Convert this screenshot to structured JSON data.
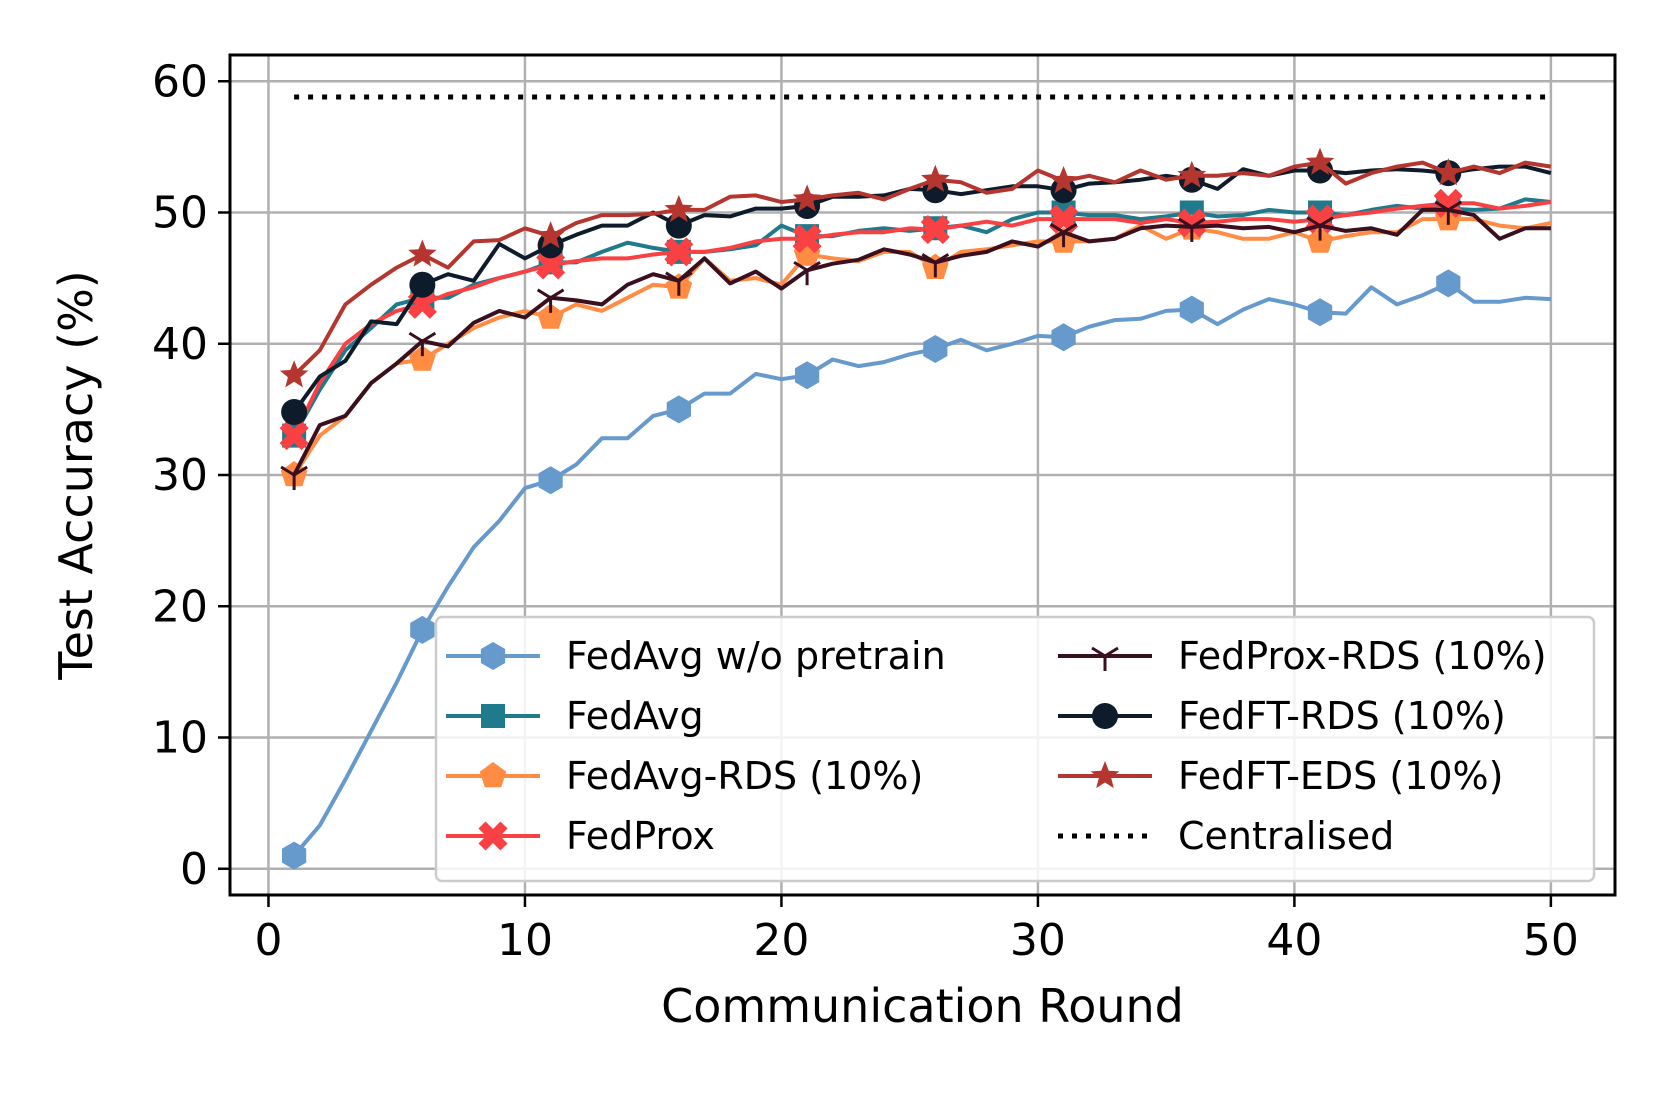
{
  "chart_data": {
    "type": "line",
    "title": "",
    "xlabel": "Communication Round",
    "ylabel": "Test Accuracy (%)",
    "xlim": [
      -1.5,
      52.5
    ],
    "ylim": [
      -2,
      62
    ],
    "xticks": [
      0,
      10,
      20,
      30,
      40,
      50
    ],
    "yticks": [
      0,
      10,
      20,
      30,
      40,
      50,
      60
    ],
    "xtick_labels": [
      "0",
      "10",
      "20",
      "30",
      "40",
      "50"
    ],
    "ytick_labels": [
      "0",
      "10",
      "20",
      "30",
      "40",
      "50",
      "60"
    ],
    "grid": true,
    "legend_position": "lower-right",
    "legend_columns": 2,
    "x": [
      1,
      2,
      3,
      4,
      5,
      6,
      7,
      8,
      9,
      10,
      11,
      12,
      13,
      14,
      15,
      16,
      17,
      18,
      19,
      20,
      21,
      22,
      23,
      24,
      25,
      26,
      27,
      28,
      29,
      30,
      31,
      32,
      33,
      34,
      35,
      36,
      37,
      38,
      39,
      40,
      41,
      42,
      43,
      44,
      45,
      46,
      47,
      48,
      49,
      50
    ],
    "marker_every": 5,
    "series": [
      {
        "name": "FedAvg w/o pretrain",
        "color": "#6699cc",
        "marker": "hexagon",
        "linestyle": "solid",
        "values": [
          1.0,
          3.3,
          6.8,
          10.5,
          14.2,
          18.2,
          21.5,
          24.5,
          26.5,
          29.0,
          29.6,
          30.8,
          32.8,
          32.8,
          34.5,
          35.0,
          36.2,
          36.2,
          37.7,
          37.3,
          37.6,
          38.8,
          38.3,
          38.6,
          39.2,
          39.6,
          40.3,
          39.5,
          40.0,
          40.6,
          40.5,
          41.3,
          41.8,
          41.9,
          42.5,
          42.6,
          41.5,
          42.6,
          43.4,
          43.0,
          42.4,
          42.3,
          44.3,
          43.0,
          43.7,
          44.6,
          43.2,
          43.2,
          43.5,
          43.4
        ]
      },
      {
        "name": "FedAvg",
        "color": "#1f7a8c",
        "marker": "square",
        "linestyle": "solid",
        "values": [
          33.0,
          36.5,
          39.5,
          41.2,
          43.0,
          43.5,
          43.5,
          44.5,
          45.0,
          45.5,
          46.2,
          46.2,
          47.0,
          47.7,
          47.3,
          47.0,
          47.0,
          47.2,
          47.5,
          49.0,
          48.2,
          48.2,
          48.6,
          48.8,
          48.6,
          48.8,
          49.0,
          48.5,
          49.5,
          50.0,
          50.0,
          49.8,
          49.8,
          49.5,
          49.7,
          50.0,
          49.7,
          49.8,
          50.2,
          50.0,
          50.0,
          49.8,
          50.2,
          50.5,
          50.3,
          50.3,
          50.2,
          50.3,
          51.0,
          50.8
        ]
      },
      {
        "name": "FedAvg-RDS (10%)",
        "color": "#ff8c42",
        "marker": "pentagon",
        "linestyle": "solid",
        "values": [
          30.0,
          33.0,
          34.5,
          37.0,
          38.5,
          38.8,
          40.0,
          41.2,
          42.0,
          42.5,
          42.0,
          43.0,
          42.5,
          43.5,
          44.5,
          44.3,
          46.5,
          44.8,
          45.0,
          44.5,
          46.8,
          46.5,
          46.3,
          47.0,
          47.0,
          45.8,
          47.0,
          47.2,
          47.5,
          47.8,
          47.8,
          47.8,
          48.0,
          49.0,
          48.0,
          48.8,
          48.5,
          48.0,
          48.0,
          48.5,
          47.8,
          48.2,
          48.5,
          48.5,
          49.5,
          49.5,
          49.5,
          49.0,
          48.8,
          49.2
        ]
      },
      {
        "name": "FedProx",
        "color": "#f94144",
        "marker": "x-filled",
        "linestyle": "solid",
        "values": [
          33.0,
          37.0,
          40.0,
          41.5,
          42.5,
          43.0,
          43.8,
          44.3,
          45.0,
          45.5,
          46.0,
          46.3,
          46.5,
          46.5,
          46.8,
          47.0,
          47.0,
          47.3,
          47.8,
          48.0,
          48.0,
          48.3,
          48.5,
          48.5,
          48.8,
          48.7,
          49.0,
          49.3,
          49.0,
          49.5,
          49.5,
          49.5,
          49.5,
          49.2,
          49.5,
          49.2,
          49.3,
          49.5,
          49.5,
          49.3,
          49.5,
          49.8,
          50.0,
          50.3,
          50.5,
          50.7,
          50.7,
          50.3,
          50.5,
          50.8
        ]
      },
      {
        "name": "FedProx-RDS (10%)",
        "color": "#3a0f1e",
        "marker": "tri",
        "linestyle": "solid",
        "values": [
          30.0,
          33.8,
          34.5,
          37.0,
          38.5,
          40.2,
          39.8,
          41.6,
          42.5,
          42.0,
          43.5,
          43.3,
          43.0,
          44.5,
          45.3,
          44.8,
          46.5,
          44.6,
          45.5,
          44.2,
          45.6,
          46.1,
          46.4,
          47.2,
          46.8,
          46.2,
          46.7,
          47.0,
          47.8,
          47.4,
          48.5,
          47.8,
          48.0,
          48.8,
          49.0,
          48.9,
          49.0,
          48.8,
          48.9,
          48.5,
          49.0,
          48.6,
          48.8,
          48.3,
          50.2,
          50.2,
          49.8,
          48.0,
          48.8,
          48.8
        ]
      },
      {
        "name": "FedFT-RDS (10%)",
        "color": "#0d1b2a",
        "marker": "circle",
        "linestyle": "solid",
        "values": [
          34.8,
          37.5,
          38.7,
          41.7,
          41.5,
          44.5,
          45.3,
          44.8,
          47.6,
          46.5,
          47.5,
          48.3,
          49.0,
          49.0,
          50.0,
          49.0,
          49.8,
          49.7,
          50.3,
          50.3,
          50.5,
          51.2,
          51.2,
          51.3,
          51.8,
          51.7,
          51.4,
          51.7,
          52.0,
          52.0,
          51.7,
          52.2,
          52.3,
          52.5,
          52.8,
          52.5,
          51.8,
          53.3,
          52.8,
          53.2,
          53.2,
          53.0,
          53.2,
          53.3,
          53.2,
          53.0,
          53.3,
          53.5,
          53.5,
          53.0
        ]
      },
      {
        "name": "FedFT-EDS (10%)",
        "color": "#b5362f",
        "marker": "star",
        "linestyle": "solid",
        "values": [
          37.6,
          39.5,
          43.0,
          44.5,
          45.8,
          46.8,
          45.8,
          47.8,
          47.9,
          48.8,
          48.2,
          49.2,
          49.8,
          49.8,
          49.9,
          50.2,
          50.2,
          51.2,
          51.3,
          50.8,
          51.0,
          51.3,
          51.5,
          51.0,
          51.8,
          52.5,
          52.3,
          51.5,
          51.8,
          53.2,
          52.4,
          52.8,
          52.3,
          53.2,
          52.5,
          52.8,
          52.8,
          53.0,
          52.8,
          53.5,
          53.8,
          52.2,
          53.0,
          53.5,
          53.8,
          53.0,
          53.5,
          53.0,
          53.8,
          53.5
        ]
      },
      {
        "name": "Centralised",
        "color": "#000000",
        "marker": "none",
        "linestyle": "dotted",
        "values": [
          58.8,
          58.8,
          58.8,
          58.8,
          58.8,
          58.8,
          58.8,
          58.8,
          58.8,
          58.8,
          58.8,
          58.8,
          58.8,
          58.8,
          58.8,
          58.8,
          58.8,
          58.8,
          58.8,
          58.8,
          58.8,
          58.8,
          58.8,
          58.8,
          58.8,
          58.8,
          58.8,
          58.8,
          58.8,
          58.8,
          58.8,
          58.8,
          58.8,
          58.8,
          58.8,
          58.8,
          58.8,
          58.8,
          58.8,
          58.8,
          58.8,
          58.8,
          58.8,
          58.8,
          58.8,
          58.8,
          58.8,
          58.8,
          58.8,
          58.8
        ]
      }
    ],
    "legend_entries": [
      "FedAvg w/o pretrain",
      "FedAvg",
      "FedAvg-RDS (10%)",
      "FedProx",
      "FedProx-RDS (10%)",
      "FedFT-RDS (10%)",
      "FedFT-EDS (10%)",
      "Centralised"
    ]
  }
}
